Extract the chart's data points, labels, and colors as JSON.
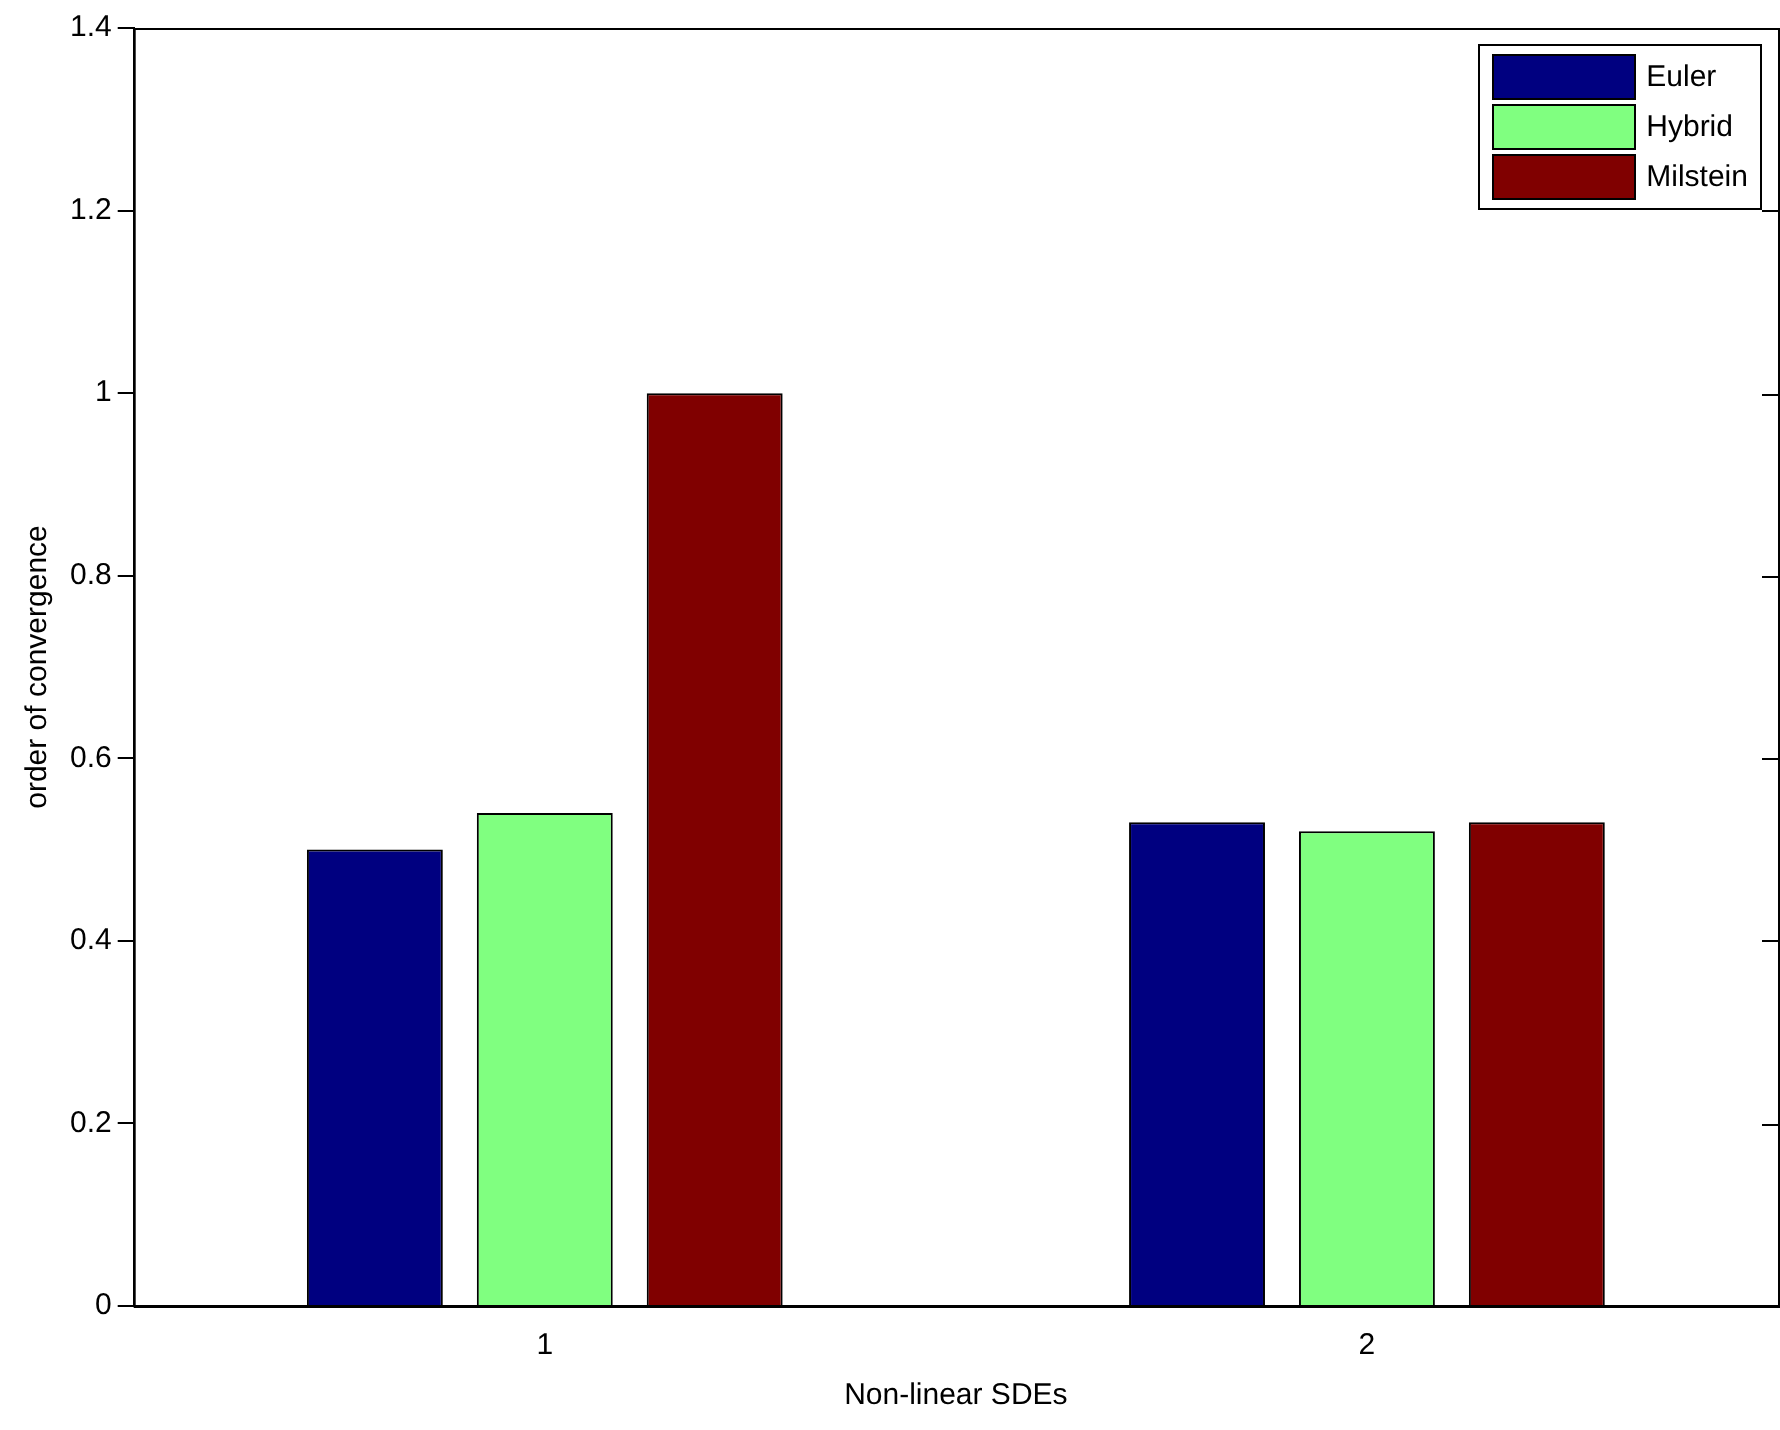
{
  "chart_data": {
    "type": "bar",
    "xlabel": "Non-linear SDEs",
    "ylabel": "order of convergence",
    "categories": [
      "1",
      "2"
    ],
    "series": [
      {
        "name": "Euler",
        "color": "#000080",
        "values": [
          0.5,
          0.53
        ]
      },
      {
        "name": "Hybrid",
        "color": "#80ff80",
        "values": [
          0.54,
          0.52
        ]
      },
      {
        "name": "Milstein",
        "color": "#800000",
        "values": [
          1.0,
          0.53
        ]
      }
    ],
    "ylim": [
      0,
      1.4
    ],
    "yticks": [
      0,
      0.2,
      0.4,
      0.6,
      0.8,
      1,
      1.2,
      1.4
    ],
    "grid": false,
    "legend": "top right"
  }
}
